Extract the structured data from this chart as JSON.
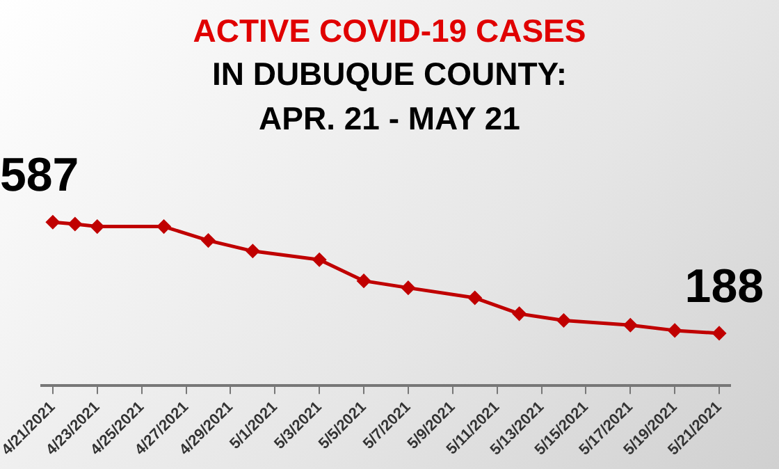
{
  "chart_data": {
    "type": "line",
    "title": "ACTIVE COVID-19 CASES",
    "subtitle": "IN DUBUQUE COUNTY:\nAPR. 21 -  MAY 21",
    "x": [
      "2021-04-21",
      "2021-04-22",
      "2021-04-23",
      "2021-04-26",
      "2021-04-28",
      "2021-04-30",
      "2021-05-03",
      "2021-05-05",
      "2021-05-07",
      "2021-05-10",
      "2021-05-12",
      "2021-05-14",
      "2021-05-17",
      "2021-05-19",
      "2021-05-21"
    ],
    "series": [
      {
        "color": "#c00000",
        "values": [
          587,
          580,
          571,
          571,
          521,
          483,
          452,
          376,
          351,
          315,
          258,
          234,
          217,
          198,
          188
        ],
        "value_labels": [
          "587",
          null,
          null,
          null,
          null,
          null,
          null,
          null,
          null,
          null,
          null,
          null,
          null,
          null,
          "188"
        ]
      }
    ],
    "xlim": [
      "2021-04-20T12:00",
      "2021-05-21T12:00"
    ],
    "xticks": [
      {
        "value": "2021-04-21",
        "label": "4/21/2021"
      },
      {
        "value": "2021-04-23",
        "label": "4/23/2021"
      },
      {
        "value": "2021-04-25",
        "label": "4/25/2021"
      },
      {
        "value": "2021-04-27",
        "label": "4/27/2021"
      },
      {
        "value": "2021-04-29",
        "label": "4/29/2021"
      },
      {
        "value": "2021-05-01",
        "label": "5/1/2021"
      },
      {
        "value": "2021-05-03",
        "label": "5/3/2021"
      },
      {
        "value": "2021-05-05",
        "label": "5/5/2021"
      },
      {
        "value": "2021-05-07",
        "label": "5/7/2021"
      },
      {
        "value": "2021-05-09",
        "label": "5/9/2021"
      },
      {
        "value": "2021-05-11",
        "label": "5/11/2021"
      },
      {
        "value": "2021-05-13",
        "label": "5/13/2021"
      },
      {
        "value": "2021-05-15",
        "label": "5/15/2021"
      },
      {
        "value": "2021-05-17",
        "label": "5/17/2021"
      },
      {
        "value": "2021-05-19",
        "label": "5/19/2021"
      },
      {
        "value": "2021-05-21",
        "label": "5/21/2021"
      }
    ],
    "tick_labels": "x",
    "grid": false,
    "legend": false,
    "marker": "diamond",
    "line_style": "solid"
  }
}
